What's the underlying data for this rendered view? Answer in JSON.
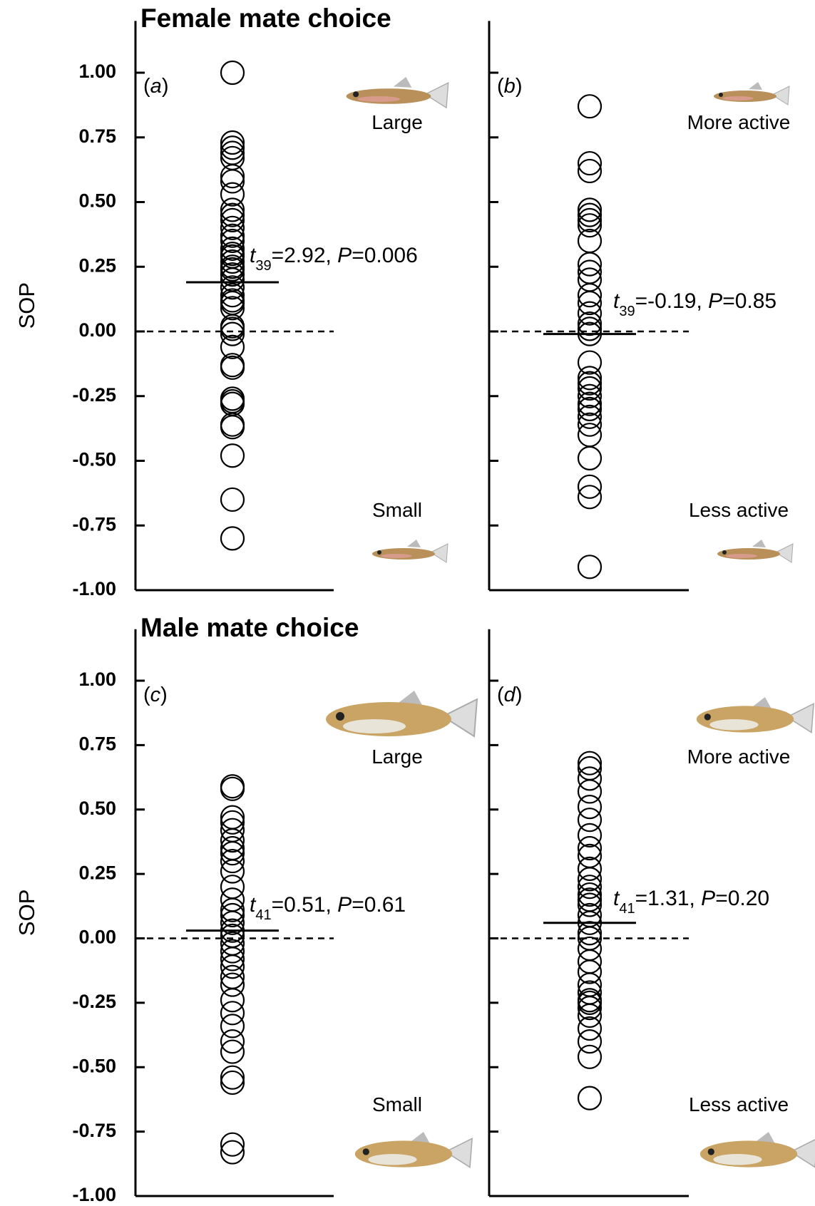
{
  "chart_data": [
    {
      "type": "scatter",
      "title": "Female mate choice",
      "panel_label": [
        "(",
        "a",
        ")"
      ],
      "ylabel": "SOP",
      "top_label": "Large",
      "bottom_label": "Small",
      "annotation": [
        "t",
        "39",
        "=2.92, ",
        "P",
        "=0.006"
      ],
      "color": "#000000",
      "values": [
        1.0,
        0.73,
        0.71,
        0.69,
        0.67,
        0.6,
        0.58,
        0.53,
        0.47,
        0.45,
        0.43,
        0.4,
        0.37,
        0.35,
        0.32,
        0.3,
        0.29,
        0.27,
        0.25,
        0.24,
        0.22,
        0.2,
        0.17,
        0.14,
        0.12,
        0.11,
        0.09,
        0.02,
        0.01,
        -0.01,
        -0.06,
        -0.13,
        -0.14,
        -0.26,
        -0.27,
        -0.28,
        -0.36,
        -0.37,
        -0.48,
        -0.65,
        -0.8
      ],
      "mean": 0.19,
      "hline": 0,
      "ylim": [
        -1,
        1.2
      ],
      "yticks": [
        {
          "value": -1,
          "label": "-1.00"
        },
        {
          "value": -0.75,
          "label": "-0.75"
        },
        {
          "value": -0.5,
          "label": "-0.50"
        },
        {
          "value": -0.25,
          "label": "-0.25"
        },
        {
          "value": 0,
          "label": "0.00"
        },
        {
          "value": 0.25,
          "label": "0.25"
        },
        {
          "value": 0.5,
          "label": "0.50"
        },
        {
          "value": 0.75,
          "label": "0.75"
        },
        {
          "value": 1,
          "label": "1.00"
        }
      ]
    },
    {
      "type": "scatter",
      "panel_label": [
        "(",
        "b",
        ")"
      ],
      "top_label": "More active",
      "bottom_label": "Less active",
      "annotation": [
        "t",
        "39",
        "=-0.19, ",
        "P",
        "=0.85"
      ],
      "color": "#000000",
      "values": [
        0.87,
        0.65,
        0.62,
        0.47,
        0.45,
        0.43,
        0.41,
        0.35,
        0.26,
        0.23,
        0.2,
        0.14,
        0.11,
        0.07,
        0.03,
        0.01,
        -0.01,
        -0.12,
        -0.18,
        -0.2,
        -0.22,
        -0.25,
        -0.28,
        -0.3,
        -0.33,
        -0.36,
        -0.4,
        -0.49,
        -0.6,
        -0.64,
        -0.91
      ],
      "mean": -0.01,
      "hline": 0,
      "ylim": [
        -1,
        1.2
      ],
      "yticks": [
        -1,
        -0.75,
        -0.5,
        -0.25,
        0,
        0.25,
        0.5,
        0.75,
        1
      ]
    },
    {
      "type": "scatter",
      "title": "Male mate choice",
      "panel_label": [
        "(",
        "c",
        ")"
      ],
      "ylabel": "SOP",
      "top_label": "Large",
      "bottom_label": "Small",
      "annotation": [
        "t",
        "41",
        "=0.51, ",
        "P",
        "=0.61"
      ],
      "color": "#000000",
      "values": [
        0.59,
        0.58,
        0.47,
        0.45,
        0.42,
        0.38,
        0.35,
        0.33,
        0.3,
        0.26,
        0.2,
        0.15,
        0.11,
        0.09,
        0.06,
        0.03,
        0.01,
        -0.02,
        -0.05,
        -0.08,
        -0.11,
        -0.15,
        -0.18,
        -0.24,
        -0.29,
        -0.34,
        -0.4,
        -0.44,
        -0.54,
        -0.56,
        -0.8,
        -0.83
      ],
      "mean": 0.03,
      "hline": 0,
      "ylim": [
        -1,
        1.2
      ],
      "yticks": [
        {
          "value": -1,
          "label": "-1.00"
        },
        {
          "value": -0.75,
          "label": "-0.75"
        },
        {
          "value": -0.5,
          "label": "-0.50"
        },
        {
          "value": -0.25,
          "label": "-0.25"
        },
        {
          "value": 0,
          "label": "0.00"
        },
        {
          "value": 0.25,
          "label": "0.25"
        },
        {
          "value": 0.5,
          "label": "0.50"
        },
        {
          "value": 0.75,
          "label": "0.75"
        },
        {
          "value": 1,
          "label": "1.00"
        }
      ]
    },
    {
      "type": "scatter",
      "panel_label": [
        "(",
        "d",
        ")"
      ],
      "top_label": "More active",
      "bottom_label": "Less active",
      "annotation": [
        "t",
        "41",
        "=1.31, ",
        "P",
        "=0.20"
      ],
      "color": "#000000",
      "values": [
        0.68,
        0.66,
        0.62,
        0.57,
        0.51,
        0.46,
        0.4,
        0.35,
        0.32,
        0.27,
        0.23,
        0.2,
        0.17,
        0.15,
        0.13,
        0.09,
        0.06,
        0.02,
        0.0,
        -0.04,
        -0.09,
        -0.13,
        -0.18,
        -0.21,
        -0.24,
        -0.25,
        -0.27,
        -0.3,
        -0.35,
        -0.4,
        -0.46,
        -0.62
      ],
      "mean": 0.06,
      "hline": 0,
      "ylim": [
        -1,
        1.2
      ],
      "yticks": [
        -1,
        -0.75,
        -0.5,
        -0.25,
        0,
        0.25,
        0.5,
        0.75,
        1
      ]
    }
  ]
}
